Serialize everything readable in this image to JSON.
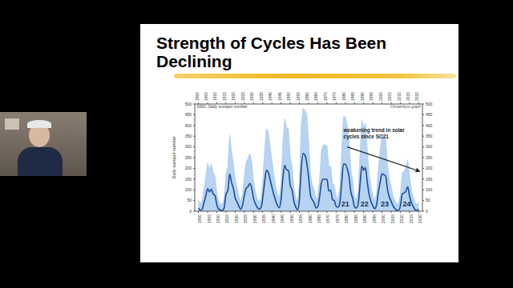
{
  "slide": {
    "title": "Strength of Cycles Has Been Declining"
  },
  "chart_data": {
    "type": "line",
    "title": "SIDC: Daily sunspot number",
    "credit": "Climate4you graph",
    "y_label": "Daily sunspot number",
    "x": [
      1900,
      1901,
      1902,
      1903,
      1904,
      1905,
      1906,
      1907,
      1908,
      1909,
      1910,
      1911,
      1912,
      1913,
      1914,
      1915,
      1916,
      1917,
      1918,
      1919,
      1920,
      1921,
      1922,
      1923,
      1924,
      1925,
      1926,
      1927,
      1928,
      1929,
      1930,
      1931,
      1932,
      1933,
      1934,
      1935,
      1936,
      1937,
      1938,
      1939,
      1940,
      1941,
      1942,
      1943,
      1944,
      1945,
      1946,
      1947,
      1948,
      1949,
      1950,
      1951,
      1952,
      1953,
      1954,
      1955,
      1956,
      1957,
      1958,
      1959,
      1960,
      1961,
      1962,
      1963,
      1964,
      1965,
      1966,
      1967,
      1968,
      1969,
      1970,
      1971,
      1972,
      1973,
      1974,
      1975,
      1976,
      1977,
      1978,
      1979,
      1980,
      1981,
      1982,
      1983,
      1984,
      1985,
      1986,
      1987,
      1988,
      1989,
      1990,
      1991,
      1992,
      1993,
      1994,
      1995,
      1996,
      1997,
      1998,
      1999,
      2000,
      2001,
      2002,
      2003,
      2004,
      2005,
      2006,
      2007,
      2008,
      2009,
      2010,
      2011,
      2012,
      2013,
      2014,
      2015,
      2016,
      2017,
      2018,
      2019,
      2020
    ],
    "series": [
      {
        "type": "area",
        "color": "#a9cbee",
        "values": [
          55,
          35,
          45,
          105,
          160,
          225,
          195,
          220,
          180,
          165,
          85,
          45,
          35,
          30,
          60,
          175,
          205,
          355,
          280,
          225,
          145,
          110,
          70,
          45,
          80,
          165,
          230,
          245,
          270,
          230,
          140,
          95,
          60,
          45,
          55,
          140,
          280,
          385,
          370,
          305,
          240,
          175,
          120,
          80,
          60,
          130,
          320,
          430,
          390,
          385,
          250,
          210,
          110,
          65,
          40,
          130,
          405,
          480,
          470,
          450,
          330,
          170,
          125,
          100,
          55,
          70,
          150,
          280,
          310,
          310,
          305,
          205,
          210,
          130,
          120,
          70,
          60,
          100,
          275,
          440,
          440,
          400,
          335,
          200,
          140,
          65,
          55,
          90,
          260,
          425,
          390,
          410,
          280,
          170,
          110,
          75,
          50,
          80,
          195,
          285,
          355,
          350,
          335,
          215,
          150,
          115,
          70,
          50,
          35,
          35,
          75,
          180,
          185,
          205,
          240,
          160,
          100,
          65,
          40,
          30,
          45
        ]
      },
      {
        "type": "line",
        "color": "#1b4d9b",
        "values": [
          15.7,
          4.6,
          8.5,
          40.8,
          70.1,
          105.5,
          90.1,
          102.8,
          80.9,
          73.2,
          30.9,
          9.5,
          6.0,
          2.4,
          16.1,
          79.0,
          95.0,
          173.6,
          134.6,
          105.7,
          62.7,
          43.5,
          23.7,
          9.7,
          27.9,
          74.0,
          106.5,
          114.7,
          129.7,
          108.2,
          59.4,
          35.1,
          18.6,
          9.2,
          14.6,
          60.2,
          132.8,
          190.6,
          182.6,
          148.0,
          113.0,
          79.2,
          50.8,
          27.1,
          16.1,
          55.3,
          154.3,
          214.7,
          193.0,
          190.7,
          118.9,
          98.3,
          45.0,
          20.1,
          6.6,
          54.2,
          200.7,
          269.3,
          261.7,
          225.1,
          159.0,
          76.4,
          53.4,
          39.9,
          15.0,
          22.0,
          66.8,
          132.9,
          150.0,
          149.4,
          148.0,
          94.4,
          97.6,
          54.1,
          49.2,
          22.5,
          18.4,
          39.3,
          131.0,
          220.1,
          218.9,
          198.9,
          162.4,
          91.0,
          60.5,
          20.6,
          14.8,
          33.9,
          123.0,
          211.1,
          191.8,
          203.3,
          133.0,
          76.1,
          44.9,
          25.1,
          11.6,
          28.9,
          88.3,
          136.3,
          173.9,
          170.4,
          163.6,
          99.3,
          65.3,
          45.8,
          24.7,
          12.6,
          4.2,
          4.8,
          24.9,
          80.8,
          84.5,
          94.0,
          113.3,
          69.8,
          39.8,
          21.7,
          7.0,
          3.6,
          8.8
        ]
      }
    ],
    "xlim": [
      1898,
      2022
    ],
    "xticks": [
      1900,
      1905,
      1910,
      1915,
      1920,
      1925,
      1930,
      1935,
      1940,
      1945,
      1950,
      1955,
      1960,
      1965,
      1970,
      1975,
      1980,
      1985,
      1990,
      1995,
      2000,
      2005,
      2010,
      2015,
      2020
    ],
    "ylim": [
      0,
      500
    ],
    "yticks": [
      0,
      50,
      100,
      150,
      200,
      250,
      300,
      350,
      400,
      450,
      500
    ],
    "grid": false,
    "cycle_labels": [
      {
        "text": "21",
        "x": 1980,
        "y": 30
      },
      {
        "text": "22",
        "x": 1990.5,
        "y": 30
      },
      {
        "text": "23",
        "x": 2001.5,
        "y": 30
      },
      {
        "text": "24",
        "x": 2013.5,
        "y": 30
      }
    ],
    "annotations": [
      {
        "text": "weakening trend in solar",
        "x": 1979,
        "y": 375
      },
      {
        "text": "cycles since SC21",
        "x": 1979,
        "y": 345
      }
    ],
    "arrow": {
      "x": [
        1981,
        2021
      ],
      "y": [
        300,
        185
      ]
    }
  }
}
